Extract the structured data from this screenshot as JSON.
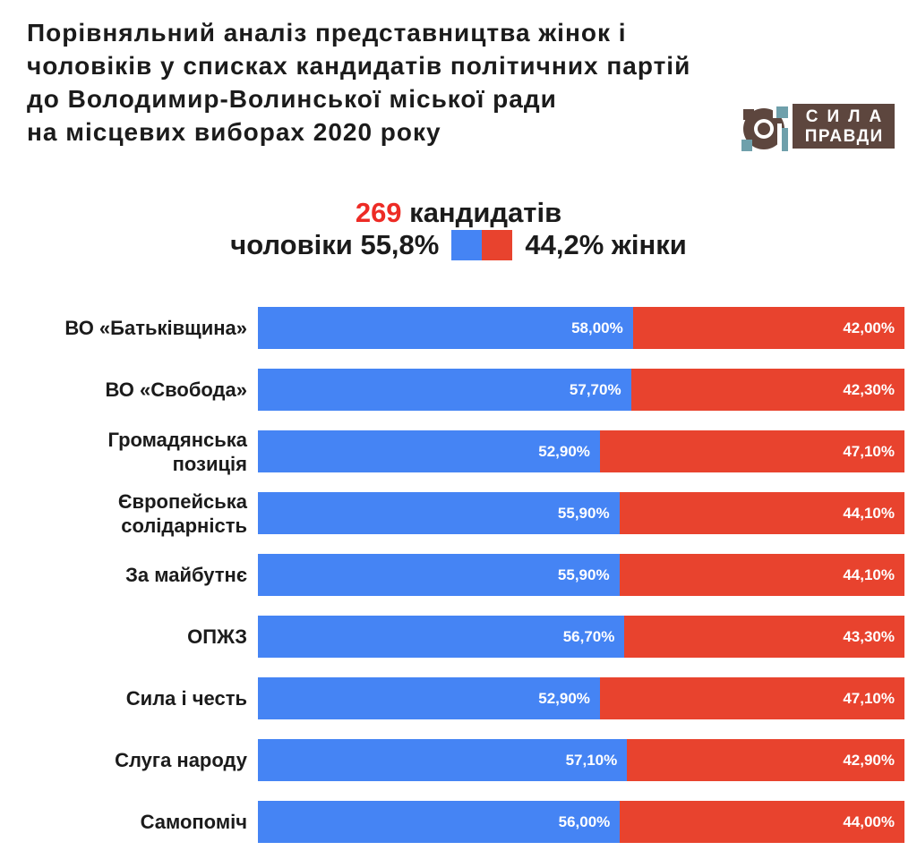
{
  "header": {
    "title_lines": [
      "Порівняльний аналіз представництва жінок і",
      "чоловіків у списках кандидатів політичних партій",
      "до Володимир-Волинської міської ради",
      "на місцевих виборах 2020 року"
    ],
    "logo": {
      "line1": "СИЛА",
      "line2": "ПРАВДИ"
    }
  },
  "summary": {
    "count": "269",
    "count_suffix": " кандидатів",
    "men_label": "чоловіки",
    "men_pct": "55,8%",
    "women_pct": "44,2%",
    "women_label": "жінки"
  },
  "colors": {
    "men": "#4584F4",
    "women": "#E8432E",
    "accent_red": "#ED2B25",
    "logo_teal": "#6FA0AB",
    "logo_brown": "#5D463E"
  },
  "chart_data": {
    "type": "bar",
    "stacked": true,
    "orientation": "horizontal",
    "unit": "%",
    "xlim": [
      0,
      100
    ],
    "grid": false,
    "legend_position": "top-center",
    "title": "269 кандидатів",
    "series_names": [
      "чоловіки",
      "жінки"
    ],
    "categories": [
      "ВО «Батьківщина»",
      "ВО «Свобода»",
      "Громадянська позиція",
      "Європейська солідарність",
      "За майбутнє",
      "ОПЖЗ",
      "Сила і честь",
      "Слуга народу",
      "Самопоміч"
    ],
    "rows": [
      {
        "party_lines": [
          "ВО «Батьківщина»"
        ],
        "men": 58.0,
        "women": 42.0,
        "men_label": "58,00%",
        "women_label": "42,00%"
      },
      {
        "party_lines": [
          "ВО «Свобода»"
        ],
        "men": 57.7,
        "women": 42.3,
        "men_label": "57,70%",
        "women_label": "42,30%"
      },
      {
        "party_lines": [
          "Громадянська",
          "позиція"
        ],
        "men": 52.9,
        "women": 47.1,
        "men_label": "52,90%",
        "women_label": "47,10%"
      },
      {
        "party_lines": [
          "Європейська",
          "солідарність"
        ],
        "men": 55.9,
        "women": 44.1,
        "men_label": "55,90%",
        "women_label": "44,10%"
      },
      {
        "party_lines": [
          "За майбутнє"
        ],
        "men": 55.9,
        "women": 44.1,
        "men_label": "55,90%",
        "women_label": "44,10%"
      },
      {
        "party_lines": [
          "ОПЖЗ"
        ],
        "men": 56.7,
        "women": 43.3,
        "men_label": "56,70%",
        "women_label": "43,30%"
      },
      {
        "party_lines": [
          "Сила і честь"
        ],
        "men": 52.9,
        "women": 47.1,
        "men_label": "52,90%",
        "women_label": "47,10%"
      },
      {
        "party_lines": [
          "Слуга народу"
        ],
        "men": 57.1,
        "women": 42.9,
        "men_label": "57,10%",
        "women_label": "42,90%"
      },
      {
        "party_lines": [
          "Самопоміч"
        ],
        "men": 56.0,
        "women": 44.0,
        "men_label": "56,00%",
        "women_label": "44,00%"
      }
    ]
  }
}
